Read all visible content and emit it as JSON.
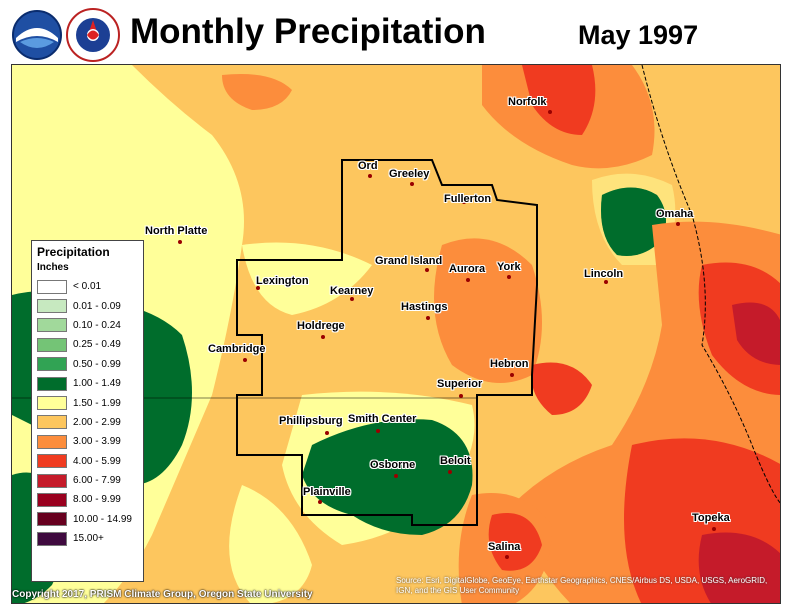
{
  "header": {
    "title": "Monthly Precipitation",
    "subtitle": "May 1997",
    "logos": [
      "noaa-logo",
      "nws-logo"
    ]
  },
  "legend": {
    "title": "Precipitation",
    "units": "Inches",
    "items": [
      {
        "label": "< 0.01",
        "color": "#ffffff"
      },
      {
        "label": "0.01 - 0.09",
        "color": "#c7e9c0"
      },
      {
        "label": "0.10 - 0.24",
        "color": "#a1d99b"
      },
      {
        "label": "0.25 - 0.49",
        "color": "#74c476"
      },
      {
        "label": "0.50 - 0.99",
        "color": "#31a354"
      },
      {
        "label": "1.00 - 1.49",
        "color": "#006d2c"
      },
      {
        "label": "1.50 - 1.99",
        "color": "#ffff99"
      },
      {
        "label": "2.00 - 2.99",
        "color": "#fdc65e"
      },
      {
        "label": "3.00 - 3.99",
        "color": "#fc8d3c"
      },
      {
        "label": "4.00 - 5.99",
        "color": "#f03b20"
      },
      {
        "label": "6.00 - 7.99",
        "color": "#c51b2a"
      },
      {
        "label": "8.00 - 9.99",
        "color": "#99001f"
      },
      {
        "label": "10.00 - 14.99",
        "color": "#67001f"
      },
      {
        "label": "15.00+",
        "color": "#3f0a3f"
      }
    ]
  },
  "cities": [
    {
      "name": "Norfolk"
    },
    {
      "name": "Ord"
    },
    {
      "name": "Greeley"
    },
    {
      "name": "Fullerton"
    },
    {
      "name": "Omaha"
    },
    {
      "name": "North Platte"
    },
    {
      "name": "Lexington"
    },
    {
      "name": "Grand Island"
    },
    {
      "name": "Aurora"
    },
    {
      "name": "York"
    },
    {
      "name": "Lincoln"
    },
    {
      "name": "Kearney"
    },
    {
      "name": "Hastings"
    },
    {
      "name": "Holdrege"
    },
    {
      "name": "Cambridge"
    },
    {
      "name": "Hebron"
    },
    {
      "name": "Superior"
    },
    {
      "name": "Phillipsburg"
    },
    {
      "name": "Smith Center"
    },
    {
      "name": "Beloit"
    },
    {
      "name": "Osborne"
    },
    {
      "name": "Plainville"
    },
    {
      "name": "Topeka"
    },
    {
      "name": "Salina"
    }
  ],
  "footer": {
    "copyright": "Copyright 2017, PRISM Climate Group, Oregon State University",
    "source": "Source: Esri, DigitalGlobe, GeoEye, Earthstar Geographics, CNES/Airbus DS, USDA, USGS, AeroGRID, IGN, and the GIS User Community"
  }
}
